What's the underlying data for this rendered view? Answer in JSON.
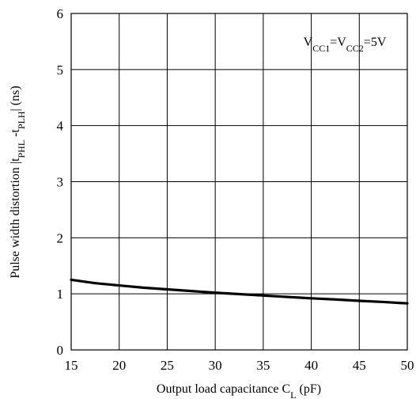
{
  "chart_data": {
    "type": "line",
    "title": "",
    "xlabel": {
      "parts": [
        {
          "text": "Output load capacitance C",
          "sub": false
        },
        {
          "text": "L",
          "sub": true
        },
        {
          "text": " (pF)",
          "sub": false
        }
      ]
    },
    "ylabel": {
      "parts": [
        {
          "text": "Pulse width distortion |t",
          "sub": false
        },
        {
          "text": "PHL",
          "sub": true
        },
        {
          "text": " -t",
          "sub": false
        },
        {
          "text": "PLH",
          "sub": true
        },
        {
          "text": "| (ns)",
          "sub": false
        }
      ]
    },
    "annotation": {
      "parts": [
        {
          "text": "V",
          "sub": false
        },
        {
          "text": "CC1",
          "sub": true
        },
        {
          "text": "=V",
          "sub": false
        },
        {
          "text": "CC2",
          "sub": true
        },
        {
          "text": "=5V",
          "sub": false
        }
      ],
      "position": "top-right"
    },
    "xlim": [
      15,
      50
    ],
    "ylim": [
      0,
      6
    ],
    "xticks": [
      15,
      20,
      25,
      30,
      35,
      40,
      45,
      50
    ],
    "yticks": [
      0,
      1,
      2,
      3,
      4,
      5,
      6
    ],
    "grid": true,
    "series": [
      {
        "x": [
          15,
          17.5,
          20,
          22.5,
          25,
          27.5,
          30,
          32.5,
          35,
          37.5,
          40,
          42.5,
          45,
          47.5,
          50
        ],
        "y": [
          1.25,
          1.19,
          1.15,
          1.11,
          1.08,
          1.05,
          1.02,
          0.995,
          0.97,
          0.945,
          0.92,
          0.9,
          0.875,
          0.855,
          0.83
        ],
        "color": "#000000"
      }
    ]
  }
}
